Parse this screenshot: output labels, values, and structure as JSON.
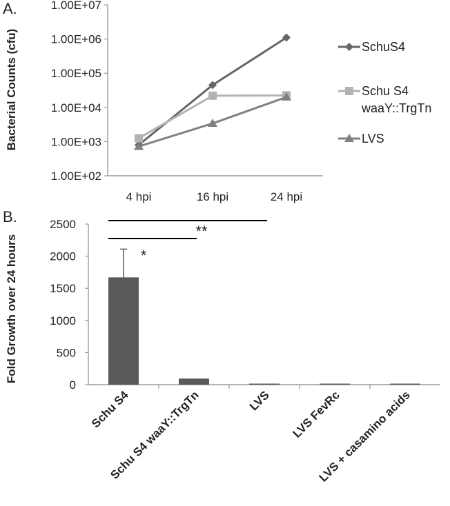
{
  "chart_data": [
    {
      "panel": "A.",
      "type": "line",
      "yscale": "log",
      "ylabel": "Bacterial Counts (cfu)",
      "categories": [
        "4 hpi",
        "16 hpi",
        "24 hpi"
      ],
      "ytick_labels": [
        "1.00E+02",
        "1.00E+03",
        "1.00E+04",
        "1.00E+05",
        "1.00E+06",
        "1.00E+07"
      ],
      "ylim": [
        100,
        10000000
      ],
      "series": [
        {
          "name": "SchuS4",
          "marker": "diamond",
          "color": "#666666",
          "values": [
            800,
            45000,
            1100000
          ]
        },
        {
          "name": "Schu S4 waaY::TrgTn",
          "legend_lines": [
            "Schu S4",
            "waaY::TrgTn"
          ],
          "marker": "square",
          "color": "#b3b3b3",
          "values": [
            1250,
            22000,
            22500
          ]
        },
        {
          "name": "LVS",
          "marker": "triangle",
          "color": "#808080",
          "values": [
            720,
            3400,
            20000
          ]
        }
      ]
    },
    {
      "panel": "B.",
      "type": "bar",
      "ylabel": "Fold Growth over 24 hours",
      "categories": [
        "Schu S4",
        "Schu S4 waaY::TrgTn",
        "LVS",
        "LVS FevRc",
        "LVS + casamino acids"
      ],
      "values": [
        1670,
        95,
        8,
        15,
        3
      ],
      "error_upper": [
        2110,
        null,
        null,
        null,
        null
      ],
      "ylim": [
        0,
        2500
      ],
      "yticks": [
        0,
        500,
        1000,
        1500,
        2000,
        2500
      ],
      "bar_color": "#595959",
      "significance": [
        {
          "from": "Schu S4",
          "to": "Schu S4 waaY::TrgTn",
          "label": "*"
        },
        {
          "from": "Schu S4",
          "to": "LVS",
          "label": "**"
        }
      ]
    }
  ]
}
